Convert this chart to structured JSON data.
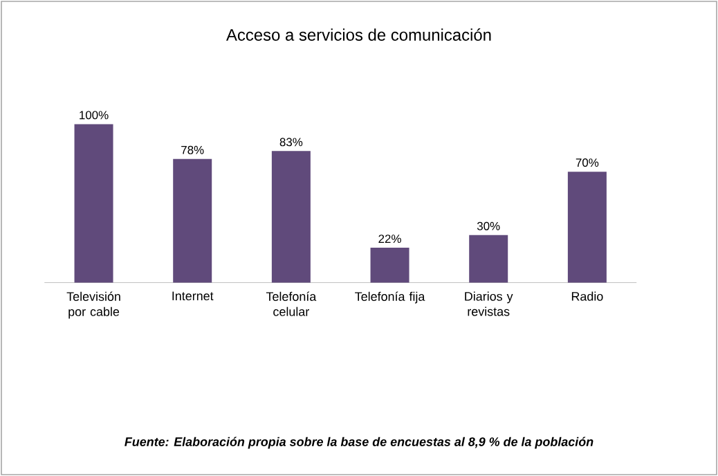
{
  "chart_data": {
    "type": "bar",
    "title": "Acceso a servicios de comunicación",
    "categories": [
      "Televisión por cable",
      "Internet",
      "Telefonía celular",
      "Telefonía fija",
      "Diarios y revistas",
      "Radio"
    ],
    "values": [
      100,
      78,
      83,
      22,
      30,
      70
    ],
    "value_labels": [
      "100%",
      "78%",
      "83%",
      "22%",
      "30%",
      "70%"
    ],
    "color": "#604a7b",
    "annotations": [
      "Fuente: Elaboración propia sobre la base de encuestas al 8,9 % de la población"
    ]
  }
}
